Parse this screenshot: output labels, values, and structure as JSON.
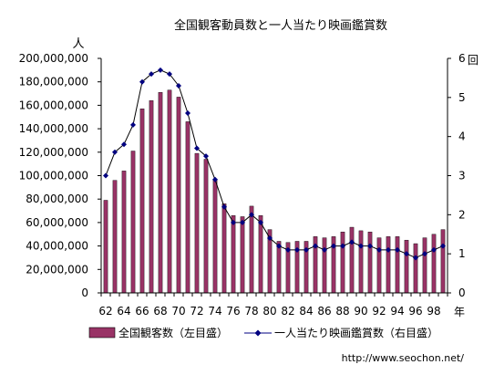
{
  "chart_data": {
    "type": "bar+line",
    "title": "全国観客動員数と一人当たり映画鑑賞数",
    "y_left_unit": "人",
    "y_right_unit": "回",
    "x_unit": "年",
    "source": "http://www.seochon.net/",
    "x_tick_labels": [
      "62",
      "64",
      "66",
      "68",
      "70",
      "72",
      "74",
      "76",
      "78",
      "80",
      "82",
      "84",
      "86",
      "88",
      "90",
      "92",
      "94",
      "96",
      "98"
    ],
    "y_left": {
      "min": 0,
      "max": 200000000,
      "step": 20000000,
      "tick_labels": [
        "0",
        "20,000,000",
        "40,000,000",
        "60,000,000",
        "80,000,000",
        "100,000,000",
        "120,000,000",
        "140,000,000",
        "160,000,000",
        "180,000,000",
        "200,000,000"
      ]
    },
    "y_right": {
      "min": 0,
      "max": 6,
      "step": 1,
      "tick_labels": [
        "0",
        "1",
        "2",
        "3",
        "4",
        "5",
        "6"
      ]
    },
    "years": [
      1962,
      1963,
      1964,
      1965,
      1966,
      1967,
      1968,
      1969,
      1970,
      1971,
      1972,
      1973,
      1974,
      1975,
      1976,
      1977,
      1978,
      1979,
      1980,
      1981,
      1982,
      1983,
      1984,
      1985,
      1986,
      1987,
      1988,
      1989,
      1990,
      1991,
      1992,
      1993,
      1994,
      1995,
      1996,
      1997,
      1998,
      1999
    ],
    "series": [
      {
        "name": "全国観客数（左目盛）",
        "kind": "bar",
        "axis": "left",
        "color": "#993366",
        "values": [
          79000000,
          96000000,
          104000000,
          121000000,
          157000000,
          164000000,
          171000000,
          173000000,
          167000000,
          146000000,
          119000000,
          114000000,
          97000000,
          76000000,
          66000000,
          65000000,
          74000000,
          66000000,
          54000000,
          44000000,
          43000000,
          44000000,
          44000000,
          48000000,
          47000000,
          48000000,
          52000000,
          56000000,
          53000000,
          52000000,
          47000000,
          48000000,
          48000000,
          45000000,
          42000000,
          47000000,
          50000000,
          54000000
        ]
      },
      {
        "name": "一人当たり映画鑑賞数（右目盛）",
        "kind": "line",
        "axis": "right",
        "color": "#000080",
        "values": [
          3.0,
          3.6,
          3.8,
          4.3,
          5.4,
          5.6,
          5.7,
          5.6,
          5.3,
          4.6,
          3.7,
          3.5,
          2.9,
          2.2,
          1.8,
          1.8,
          2.0,
          1.8,
          1.4,
          1.2,
          1.1,
          1.1,
          1.1,
          1.2,
          1.1,
          1.2,
          1.2,
          1.3,
          1.2,
          1.2,
          1.1,
          1.1,
          1.1,
          1.0,
          0.9,
          1.0,
          1.1,
          1.2
        ]
      }
    ],
    "legend_position": "bottom",
    "grid": false
  }
}
